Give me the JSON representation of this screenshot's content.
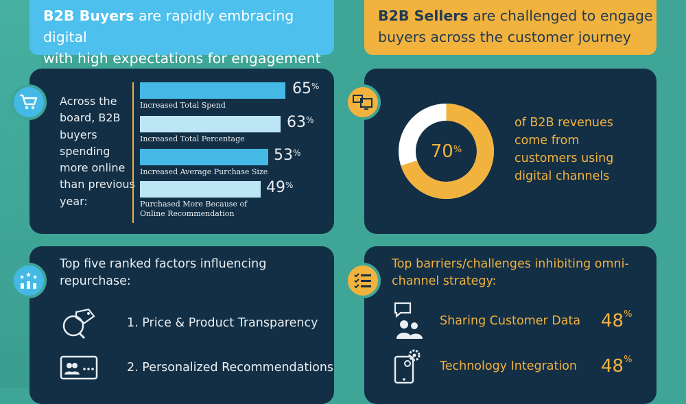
{
  "banners": {
    "left": {
      "bold": "B2B Buyers",
      "rest": " are rapidly embracing digital",
      "line2": "with high expectations for engagement"
    },
    "right": {
      "bold": "B2B Sellers",
      "rest": " are challenged to engage",
      "line2": "buyers across the customer journey"
    }
  },
  "buyers_panel": {
    "lead_text": "Across the board, B2B buyers spending more online than previous year:",
    "icon": "shopping-cart-icon",
    "bars": [
      {
        "label": "Increased Total Spend",
        "value": 65,
        "pct_sign": "%"
      },
      {
        "label": "Increased Total Percentage",
        "value": 63,
        "pct_sign": "%"
      },
      {
        "label": "Increased Average Purchase Size",
        "value": 53,
        "pct_sign": "%"
      },
      {
        "label": "Purchased More Because of Online Recommendation",
        "value": 49,
        "pct_sign": "%"
      }
    ]
  },
  "sellers_panel": {
    "icon": "devices-icon",
    "donut_value": 70,
    "donut_label": "70",
    "pct_sign": "%",
    "revenue_text": "of B2B revenues come from customers using digital channels"
  },
  "factors_panel": {
    "icon": "rating-stars-icon",
    "title": "Top five ranked factors influencing repurchase:",
    "items": [
      {
        "label": "1. Price & Product Transparency",
        "icon": "magnifier-tag-icon"
      },
      {
        "label": "2. Personalized Recommendations",
        "icon": "user-card-icon"
      }
    ]
  },
  "barriers_panel": {
    "icon": "checklist-icon",
    "title": "Top barriers/challenges inhibiting omni-channel strategy:",
    "items": [
      {
        "label": "Sharing Customer Data",
        "value": "48",
        "pct_sign": "%",
        "icon": "users-chat-icon"
      },
      {
        "label": "Technology Integration",
        "value": "48",
        "pct_sign": "%",
        "icon": "tablet-gear-icon"
      }
    ]
  },
  "colors": {
    "background": "#3fa596",
    "panel": "#132f45",
    "blue": "#4dc0ed",
    "orange": "#f2b23e",
    "bar_dark": "#45b9e6",
    "bar_light": "#bde6f5"
  }
}
